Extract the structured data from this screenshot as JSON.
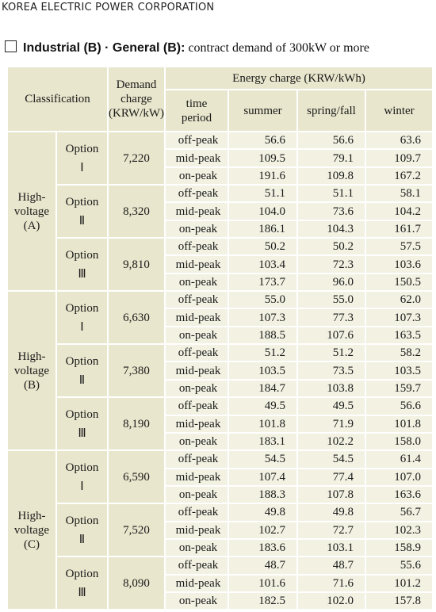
{
  "header": {
    "company": "KOREA ELECTRIC POWER CORPORATION",
    "title": "Industrial (B) · General (B):",
    "subtitle": "contract demand of 300kW or more"
  },
  "table": {
    "columns": {
      "classification": "Classification",
      "demand": [
        "Demand",
        "charge",
        "(KRW/kW)"
      ],
      "energy": "Energy charge (KRW/kWh)",
      "period": [
        "time",
        "period"
      ],
      "seasons": [
        "summer",
        "spring/fall",
        "winter"
      ]
    },
    "groups": [
      {
        "name": [
          "High-",
          "voltage",
          "(A)"
        ],
        "options": [
          {
            "label": "Option",
            "numeral": "Ⅰ",
            "demand": "7,220",
            "rows": [
              [
                "off-peak",
                "56.6",
                "56.6",
                "63.6"
              ],
              [
                "mid-peak",
                "109.5",
                "79.1",
                "109.7"
              ],
              [
                "on-peak",
                "191.6",
                "109.8",
                "167.2"
              ]
            ]
          },
          {
            "label": "Option",
            "numeral": "Ⅱ",
            "demand": "8,320",
            "rows": [
              [
                "off-peak",
                "51.1",
                "51.1",
                "58.1"
              ],
              [
                "mid-peak",
                "104.0",
                "73.6",
                "104.2"
              ],
              [
                "on-peak",
                "186.1",
                "104.3",
                "161.7"
              ]
            ]
          },
          {
            "label": "Option",
            "numeral": "Ⅲ",
            "demand": "9,810",
            "rows": [
              [
                "off-peak",
                "50.2",
                "50.2",
                "57.5"
              ],
              [
                "mid-peak",
                "103.4",
                "72.3",
                "103.6"
              ],
              [
                "on-peak",
                "173.7",
                "96.0",
                "150.5"
              ]
            ]
          }
        ]
      },
      {
        "name": [
          "High-",
          "voltage",
          "(B)"
        ],
        "options": [
          {
            "label": "Option",
            "numeral": "Ⅰ",
            "demand": "6,630",
            "rows": [
              [
                "off-peak",
                "55.0",
                "55.0",
                "62.0"
              ],
              [
                "mid-peak",
                "107.3",
                "77.3",
                "107.3"
              ],
              [
                "on-peak",
                "188.5",
                "107.6",
                "163.5"
              ]
            ]
          },
          {
            "label": "Option",
            "numeral": "Ⅱ",
            "demand": "7,380",
            "rows": [
              [
                "off-peak",
                "51.2",
                "51.2",
                "58.2"
              ],
              [
                "mid-peak",
                "103.5",
                "73.5",
                "103.5"
              ],
              [
                "on-peak",
                "184.7",
                "103.8",
                "159.7"
              ]
            ]
          },
          {
            "label": "Option",
            "numeral": "Ⅲ",
            "demand": "8,190",
            "rows": [
              [
                "off-peak",
                "49.5",
                "49.5",
                "56.6"
              ],
              [
                "mid-peak",
                "101.8",
                "71.9",
                "101.8"
              ],
              [
                "on-peak",
                "183.1",
                "102.2",
                "158.0"
              ]
            ]
          }
        ]
      },
      {
        "name": [
          "High-",
          "voltage",
          "(C)"
        ],
        "options": [
          {
            "label": "Option",
            "numeral": "Ⅰ",
            "demand": "6,590",
            "rows": [
              [
                "off-peak",
                "54.5",
                "54.5",
                "61.4"
              ],
              [
                "mid-peak",
                "107.4",
                "77.4",
                "107.0"
              ],
              [
                "on-peak",
                "188.3",
                "107.8",
                "163.6"
              ]
            ]
          },
          {
            "label": "Option",
            "numeral": "Ⅱ",
            "demand": "7,520",
            "rows": [
              [
                "off-peak",
                "49.8",
                "49.8",
                "56.7"
              ],
              [
                "mid-peak",
                "102.7",
                "72.7",
                "102.3"
              ],
              [
                "on-peak",
                "183.6",
                "103.1",
                "158.9"
              ]
            ]
          },
          {
            "label": "Option",
            "numeral": "Ⅲ",
            "demand": "8,090",
            "rows": [
              [
                "off-peak",
                "48.7",
                "48.7",
                "55.6"
              ],
              [
                "mid-peak",
                "101.6",
                "71.6",
                "101.2"
              ],
              [
                "on-peak",
                "182.5",
                "102.0",
                "157.8"
              ]
            ]
          }
        ]
      }
    ]
  }
}
